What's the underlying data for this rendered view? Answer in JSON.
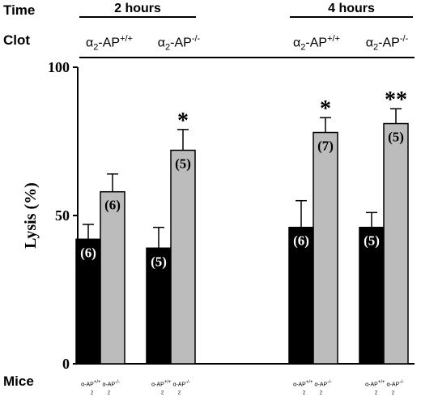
{
  "header": {
    "time_label": "Time",
    "clot_label": "Clot",
    "mice_label": "Mice"
  },
  "groups": [
    {
      "time": "2 hours"
    },
    {
      "time": "4 hours"
    }
  ],
  "clot_columns": [
    {
      "alpha": "α",
      "sub": "2",
      "ap": "-AP",
      "sup": "+/+"
    },
    {
      "alpha": "α",
      "sub": "2",
      "ap": "-AP",
      "sup": "-/-"
    },
    {
      "alpha": "α",
      "sub": "2",
      "ap": "-AP",
      "sup": "+/+"
    },
    {
      "alpha": "α",
      "sub": "2",
      "ap": "-AP",
      "sup": "-/-"
    }
  ],
  "mice_pairs": [
    {
      "left": {
        "alpha": "α",
        "ap": "-AP",
        "sup": "+/+",
        "sub": "2"
      },
      "right": {
        "alpha": "α",
        "ap": "-AP",
        "sup": "-/-",
        "sub": "2"
      }
    },
    {
      "left": {
        "alpha": "α",
        "ap": "-AP",
        "sup": "+/+",
        "sub": "2"
      },
      "right": {
        "alpha": "α",
        "ap": "-AP",
        "sup": "-/-",
        "sub": "2"
      }
    },
    {
      "left": {
        "alpha": "α",
        "ap": "-AP",
        "sup": "+/+",
        "sub": "2"
      },
      "right": {
        "alpha": "α",
        "ap": "-AP",
        "sup": "-/-",
        "sub": "2"
      }
    },
    {
      "left": {
        "alpha": "α",
        "ap": "-AP",
        "sup": "+/+",
        "sub": "2"
      },
      "right": {
        "alpha": "α",
        "ap": "-AP",
        "sup": "-/-",
        "sub": "2"
      }
    }
  ],
  "chart_data": {
    "type": "bar",
    "ylabel": "Lysis (%)",
    "ylim": [
      0,
      100
    ],
    "yticks": [
      "0",
      "50",
      "100"
    ],
    "colors": {
      "black_bar": "#000000",
      "gray_bar": "#bcbcbc"
    },
    "bars": [
      {
        "value": 42,
        "error": 5,
        "n_label": "(6)",
        "fill": "black",
        "sig": ""
      },
      {
        "value": 58,
        "error": 6,
        "n_label": "(6)",
        "fill": "gray",
        "sig": ""
      },
      {
        "value": 39,
        "error": 7,
        "n_label": "(5)",
        "fill": "black",
        "sig": ""
      },
      {
        "value": 72,
        "error": 7,
        "n_label": "(5)",
        "fill": "gray",
        "sig": "*"
      },
      {
        "value": 46,
        "error": 9,
        "n_label": "(6)",
        "fill": "black",
        "sig": ""
      },
      {
        "value": 78,
        "error": 5,
        "n_label": "(7)",
        "fill": "gray",
        "sig": "*"
      },
      {
        "value": 46,
        "error": 5,
        "n_label": "(5)",
        "fill": "black",
        "sig": ""
      },
      {
        "value": 81,
        "error": 5,
        "n_label": "(5)",
        "fill": "gray",
        "sig": "**"
      }
    ]
  }
}
